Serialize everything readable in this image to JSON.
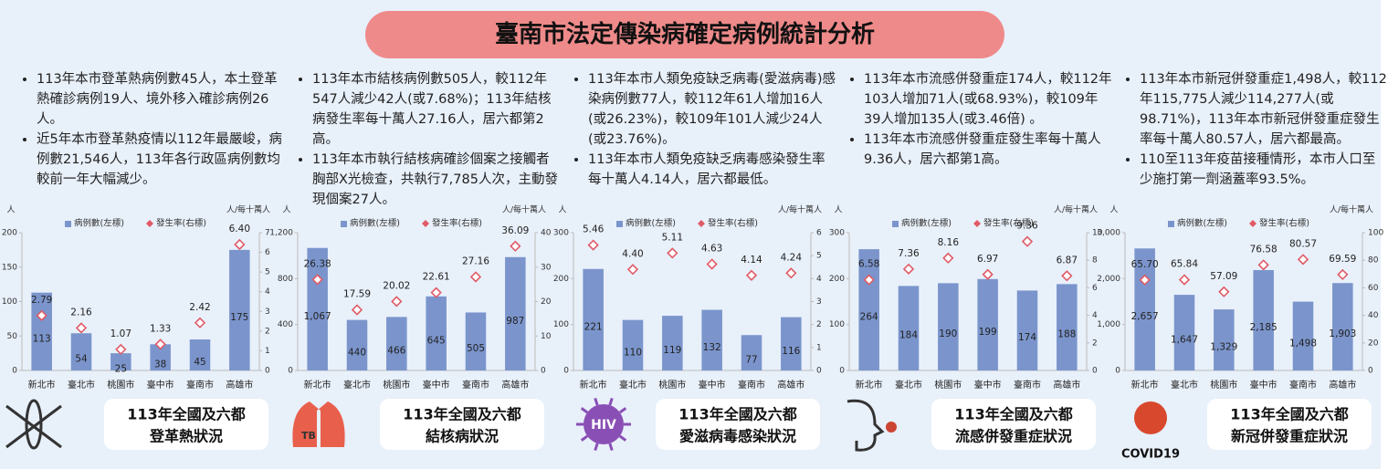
{
  "title": "臺南市法定傳染病確定病例統計分析",
  "panels": [
    {
      "bullets": [
        "113年本市登革熱病例數45人，本土登革熱確診病例19人、境外移入確診病例26人。",
        "近5年本市登革熱疫情以112年最嚴峻，病例數21,546人，113年各行政區病例數均較前一年大幅減少。"
      ],
      "caption": [
        "113年全國及六都",
        "登革熱狀況"
      ]
    },
    {
      "bullets": [
        "113年本市結核病例數505人，較112年547人減少42人(或7.68%)；113年結核病發生率每十萬人27.16人，居六都第2高。",
        "113年本市執行結核病確診個案之接觸者胸部X光檢查，共執行7,785人次，主動發現個案27人。"
      ],
      "caption": [
        "113年全國及六都",
        "結核病狀況"
      ],
      "icon_label": "TB"
    },
    {
      "bullets": [
        "113年本市人類免疫缺乏病毒(愛滋病毒)感染病例數77人，較112年61人增加16人(或26.23%)，較109年101人減少24人(或23.76%)。",
        "113年本市人類免疫缺乏病毒感染發生率每十萬人4.14人，居六都最低。"
      ],
      "caption": [
        "113年全國及六都",
        "愛滋病毒感染狀況"
      ],
      "icon_label": "HIV"
    },
    {
      "bullets": [
        "113年本市流感併發重症174人，較112年103人增加71人(或68.93%)，較109年39人增加135人(或3.46倍) 。",
        "113年本市流感併發重症發生率每十萬人9.36人，居六都第1高。"
      ],
      "caption": [
        "113年全國及六都",
        "流感併發重症狀況"
      ]
    },
    {
      "bullets": [
        "113年本市新冠併發重症1,498人，較112年115,775人減少114,277人(或98.71%)，113年本市新冠併發重症發生率每十萬人80.57人，居六都最高。",
        "110至113年疫苗接種情形，本市人口至少施打第一劑涵蓋率93.5%。"
      ],
      "caption": [
        "113年全國及六都",
        "新冠併發重症狀況"
      ],
      "icon_label": "COVID19"
    }
  ],
  "chart_data": [
    {
      "type": "bar",
      "y_label": "人",
      "y2_label": "人/每十萬人",
      "categories": [
        "新北市",
        "臺北市",
        "桃園市",
        "臺中市",
        "臺南市",
        "高雄市"
      ],
      "series": [
        {
          "name": "病例數(左標)",
          "color": "#7b95cc",
          "values": [
            113,
            54,
            25,
            38,
            45,
            175
          ]
        },
        {
          "name": "發生率(右標)",
          "color": "#e05a66",
          "axis": "y2",
          "values": [
            2.79,
            2.16,
            1.07,
            1.33,
            2.42,
            6.4
          ],
          "value_labels": [
            "2.79",
            "2.16",
            "1.07",
            "1.33",
            "2.42",
            "6.40"
          ]
        }
      ],
      "ylim": [
        0,
        200
      ],
      "yticks": [
        0,
        50,
        100,
        150,
        200
      ],
      "y2lim": [
        0,
        7
      ],
      "y2ticks": [
        0,
        1,
        2,
        3,
        4,
        5,
        6,
        7
      ]
    },
    {
      "type": "bar",
      "y_label": "人",
      "y2_label": "人/每十萬人",
      "categories": [
        "新北市",
        "臺北市",
        "桃園市",
        "臺中市",
        "臺南市",
        "高雄市"
      ],
      "series": [
        {
          "name": "病例數(左標)",
          "color": "#7b95cc",
          "values": [
            1067,
            440,
            466,
            645,
            505,
            987
          ],
          "value_labels": [
            "1,067",
            "440",
            "466",
            "645",
            "505",
            "987"
          ]
        },
        {
          "name": "發生率(右標)",
          "color": "#e05a66",
          "axis": "y2",
          "values": [
            26.38,
            17.59,
            20.02,
            22.61,
            27.16,
            36.09
          ]
        }
      ],
      "ylim": [
        0,
        1200
      ],
      "yticks": [
        0,
        400,
        800,
        {
          "value": 1200,
          "label": "1,200"
        }
      ],
      "y2lim": [
        0,
        40
      ],
      "y2ticks": [
        0,
        10,
        20,
        30,
        40
      ]
    },
    {
      "type": "bar",
      "y_label": "人",
      "y2_label": "人/每十萬人",
      "categories": [
        "新北市",
        "臺北市",
        "桃園市",
        "臺中市",
        "臺南市",
        "高雄市"
      ],
      "series": [
        {
          "name": "病例數(左標)",
          "color": "#7b95cc",
          "values": [
            221,
            110,
            119,
            132,
            77,
            116
          ]
        },
        {
          "name": "發生率(右標)",
          "color": "#e05a66",
          "axis": "y2",
          "values": [
            5.46,
            4.4,
            5.11,
            4.63,
            4.14,
            4.24
          ],
          "value_labels": [
            "5.46",
            "4.40",
            "5.11",
            "4.63",
            "4.14",
            "4.24"
          ]
        }
      ],
      "ylim": [
        0,
        300
      ],
      "yticks": [
        0,
        100,
        200,
        300
      ],
      "y2lim": [
        0,
        6
      ],
      "y2ticks": [
        0,
        1,
        2,
        3,
        4,
        5,
        6
      ]
    },
    {
      "type": "bar",
      "y_label": "人",
      "y2_label": "人/每十萬人",
      "categories": [
        "新北市",
        "臺北市",
        "桃園市",
        "臺中市",
        "臺南市",
        "高雄市"
      ],
      "series": [
        {
          "name": "病例數(左標)",
          "color": "#7b95cc",
          "values": [
            264,
            184,
            190,
            199,
            174,
            188
          ]
        },
        {
          "name": "發生率(右標)",
          "color": "#e05a66",
          "axis": "y2",
          "values": [
            6.58,
            7.36,
            8.16,
            6.97,
            9.36,
            6.87
          ]
        }
      ],
      "ylim": [
        0,
        300
      ],
      "yticks": [
        0,
        100,
        200,
        300
      ],
      "y2lim": [
        0,
        10
      ],
      "y2ticks": [
        0,
        2,
        4,
        6,
        8,
        10
      ]
    },
    {
      "type": "bar",
      "y_label": "人",
      "y2_label": "人/每十萬人",
      "categories": [
        "新北市",
        "臺北市",
        "桃園市",
        "臺中市",
        "臺南市",
        "高雄市"
      ],
      "series": [
        {
          "name": "病例數(左標)",
          "color": "#7b95cc",
          "values": [
            2657,
            1647,
            1329,
            2185,
            1498,
            1903
          ],
          "value_labels": [
            "2,657",
            "1,647",
            "1,329",
            "2,185",
            "1,498",
            "1,903"
          ]
        },
        {
          "name": "發生率(右標)",
          "color": "#e05a66",
          "axis": "y2",
          "values": [
            65.7,
            65.84,
            57.09,
            76.58,
            80.57,
            69.59
          ],
          "value_labels": [
            "65.70",
            "65.84",
            "57.09",
            "76.58",
            "80.57",
            "69.59"
          ]
        }
      ],
      "ylim": [
        0,
        3000
      ],
      "yticks": [
        0,
        {
          "value": 1000,
          "label": "1,000"
        },
        {
          "value": 2000,
          "label": "2,000"
        },
        {
          "value": 3000,
          "label": "3,000"
        }
      ],
      "y2lim": [
        0,
        100
      ],
      "y2ticks": [
        0,
        20,
        40,
        60,
        80,
        100
      ]
    }
  ]
}
